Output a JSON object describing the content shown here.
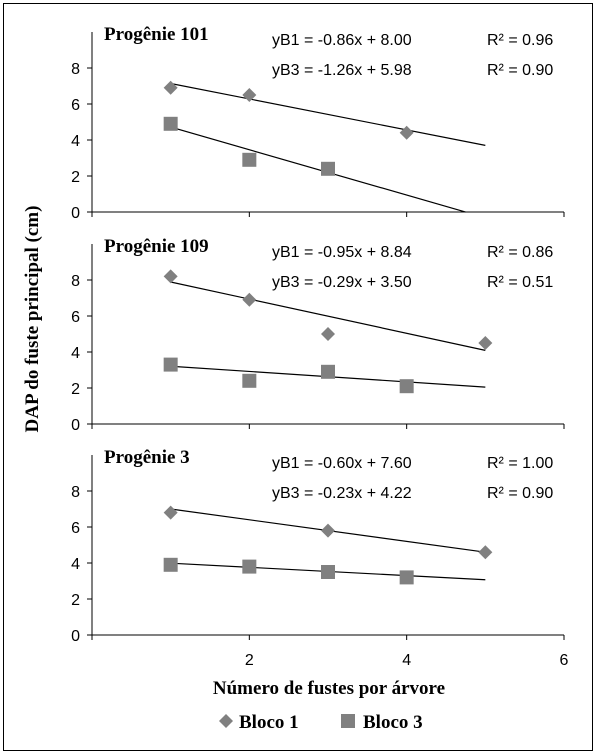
{
  "chart_data": {
    "type": "scatter",
    "ylabel": "DAP do fuste principal (cm)",
    "xlabel": "Número de fustes por árvore",
    "x_ticks": [
      "2",
      "4",
      "6"
    ],
    "xlim": [
      0,
      6
    ],
    "y_ticks": [
      "0",
      "2",
      "4",
      "6",
      "8"
    ],
    "ylim": [
      0,
      10
    ],
    "legend": {
      "placement": "bottom-center",
      "entries": [
        {
          "marker": "◆",
          "label": "Bloco 1"
        },
        {
          "marker": "■",
          "label": "Bloco 3"
        }
      ]
    },
    "colors": {
      "points": "#808080",
      "trend": "#000000",
      "axis": "#000000"
    },
    "panels": [
      {
        "title": "Progênie 101",
        "series": [
          {
            "name": "Bloco 1",
            "marker": "diamond",
            "x": [
              1,
              2,
              4
            ],
            "y": [
              6.9,
              6.5,
              4.4
            ],
            "equation": "yB1 = -0.86x + 8.00",
            "r2": "R² = 0.96",
            "trend": {
              "slope": -0.86,
              "intercept": 8.0,
              "x_range": [
                1,
                5
              ]
            }
          },
          {
            "name": "Bloco 3",
            "marker": "square",
            "x": [
              1,
              2,
              3
            ],
            "y": [
              4.9,
              2.9,
              2.4
            ],
            "equation": "yB3 = -1.26x + 5.98",
            "r2": "R² = 0.90",
            "trend": {
              "slope": -1.26,
              "intercept": 5.98,
              "x_range": [
                1,
                4.75
              ]
            }
          }
        ]
      },
      {
        "title": "Progênie 109",
        "series": [
          {
            "name": "Bloco 1",
            "marker": "diamond",
            "x": [
              1,
              2,
              3,
              5
            ],
            "y": [
              8.2,
              6.9,
              5.0,
              4.5
            ],
            "equation": "yB1 = -0.95x + 8.84",
            "r2": "R² = 0.86",
            "trend": {
              "slope": -0.95,
              "intercept": 8.84,
              "x_range": [
                1,
                5
              ]
            }
          },
          {
            "name": "Bloco 3",
            "marker": "square",
            "x": [
              1,
              2,
              3,
              4
            ],
            "y": [
              3.3,
              2.4,
              2.9,
              2.1
            ],
            "equation": "yB3 = -0.29x + 3.50",
            "r2": "R² = 0.51",
            "trend": {
              "slope": -0.29,
              "intercept": 3.5,
              "x_range": [
                1,
                5
              ]
            }
          }
        ]
      },
      {
        "title": "Progênie 3",
        "series": [
          {
            "name": "Bloco 1",
            "marker": "diamond",
            "x": [
              1,
              3,
              5
            ],
            "y": [
              6.8,
              5.8,
              4.6
            ],
            "equation": "yB1 = -0.60x + 7.60",
            "r2": "R² = 1.00",
            "trend": {
              "slope": -0.6,
              "intercept": 7.6,
              "x_range": [
                1,
                5
              ]
            }
          },
          {
            "name": "Bloco 3",
            "marker": "square",
            "x": [
              1,
              2,
              3,
              4
            ],
            "y": [
              3.9,
              3.8,
              3.5,
              3.2
            ],
            "equation": "yB3 = -0.23x + 4.22",
            "r2": "R² = 0.90",
            "trend": {
              "slope": -0.23,
              "intercept": 4.22,
              "x_range": [
                1,
                5
              ]
            }
          }
        ]
      }
    ]
  }
}
